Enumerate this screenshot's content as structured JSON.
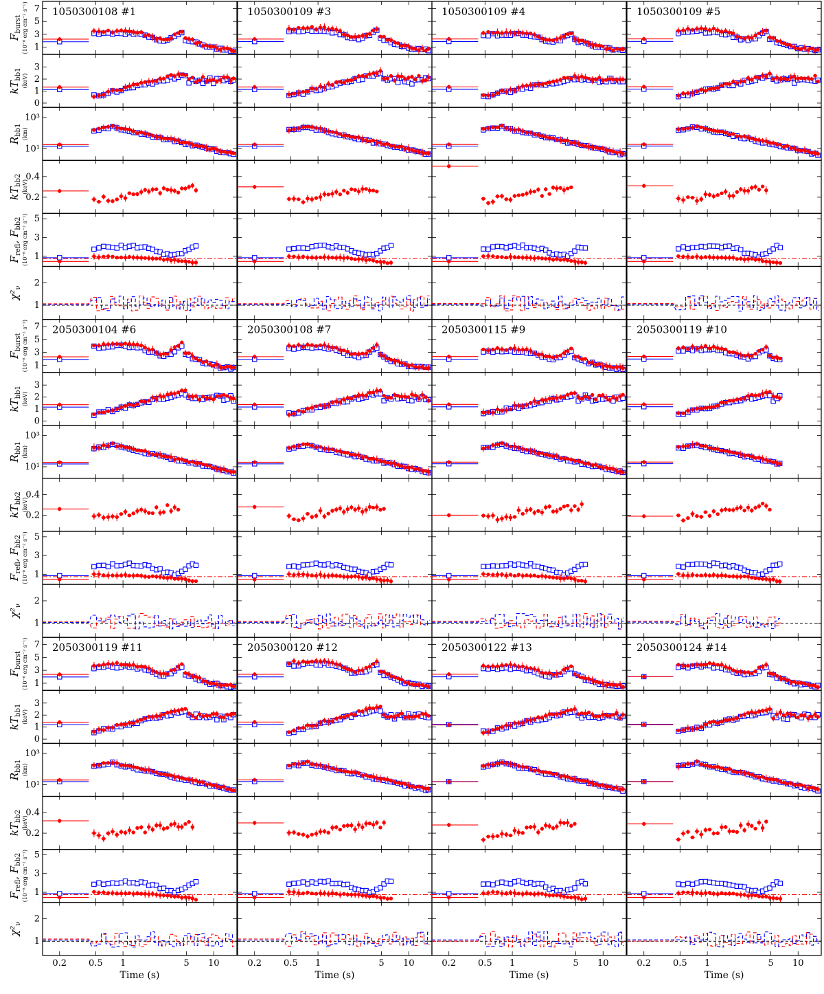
{
  "chart_data": {
    "type": "scatter",
    "description_axes": {
      "x_scale": "log",
      "xlim": [
        0.13,
        18
      ],
      "xlabel": "Time (s)",
      "x_ticks": [
        0.2,
        0.5,
        1,
        5,
        10
      ],
      "x_tick_labels": [
        "0.2",
        "0.5",
        "1",
        "5",
        "10"
      ]
    },
    "rows": [
      {
        "key": "Fburst",
        "ylabel": "F",
        "ylabel_sub": "burst",
        "unit": "(10⁻⁸ erg cm⁻² s⁻¹)",
        "scale": "linear",
        "ylim": [
          0,
          8
        ],
        "ticks": [
          1,
          3,
          5,
          7
        ],
        "tick_labels": [
          "1",
          "3",
          "5",
          "7"
        ]
      },
      {
        "key": "kTbb1",
        "ylabel": "kT",
        "ylabel_sub": "bb1",
        "unit": "(keV)",
        "scale": "linear",
        "ylim": [
          -0.3,
          4
        ],
        "ticks": [
          0,
          1,
          2,
          3
        ],
        "tick_labels": [
          "0",
          "1",
          "2",
          "3"
        ]
      },
      {
        "key": "Rbb1",
        "ylabel": "R",
        "ylabel_sub": "bb1",
        "unit": "(km)",
        "scale": "log",
        "ylim": [
          2,
          4000
        ],
        "ticks": [
          10,
          1000
        ],
        "tick_labels": [
          "10¹",
          "10³"
        ]
      },
      {
        "key": "kTbb2",
        "ylabel": "kT",
        "ylabel_sub": "bb2",
        "unit": "(keV)",
        "scale": "linear",
        "ylim": [
          0.05,
          0.55
        ],
        "ticks": [
          0.2,
          0.4
        ],
        "tick_labels": [
          "0.2",
          "0.4"
        ]
      },
      {
        "key": "Frefl",
        "ylabel": "F",
        "ylabel_sub": "refl",
        "ylabel2": ", F",
        "ylabel2_sub": "bb2",
        "unit": "(10⁻⁸ erg cm⁻² s⁻¹)",
        "scale": "linear",
        "ylim": [
          0,
          5.5
        ],
        "ticks": [
          1,
          3,
          5
        ],
        "tick_labels": [
          "1",
          "3",
          "5"
        ]
      },
      {
        "key": "chi2",
        "ylabel": "χ²",
        "ylabel_sub": "ν",
        "unit": "",
        "scale": "linear",
        "ylim": [
          0.4,
          2.7
        ],
        "ticks": [
          1,
          2
        ],
        "tick_labels": [
          "1",
          "2"
        ]
      }
    ],
    "bursts": [
      {
        "label": "1050300108 #1",
        "first_bin_end": 0.42,
        "end": 17,
        "peak": 4.0,
        "kt_peak": 2.6,
        "kt2_first": 0.26,
        "kt2_end": 6.5
      },
      {
        "label": "1050300109 #3",
        "first_bin_end": 0.42,
        "end": 17,
        "peak": 4.5,
        "kt_peak": 2.7,
        "kt2_first": 0.3,
        "kt2_end": 4.4
      },
      {
        "label": "1050300109 #4",
        "first_bin_end": 0.42,
        "end": 17,
        "peak": 3.8,
        "kt_peak": 2.3,
        "kt2_first": 0.5,
        "kt2_end": 4.6
      },
      {
        "label": "1050300109 #5",
        "first_bin_end": 0.42,
        "end": 17,
        "peak": 4.3,
        "kt_peak": 2.5,
        "kt2_first": 0.31,
        "kt2_end": 4.6
      },
      {
        "label": "2050300104 #6",
        "first_bin_end": 0.42,
        "end": 17,
        "peak": 5.0,
        "kt_peak": 2.6,
        "kt2_first": 0.26,
        "kt2_end": 4.1
      },
      {
        "label": "2050300108 #7",
        "first_bin_end": 0.42,
        "end": 17,
        "peak": 4.6,
        "kt_peak": 2.6,
        "kt2_first": 0.28,
        "kt2_end": 5.4
      },
      {
        "label": "2050300115 #9",
        "first_bin_end": 0.42,
        "end": 17,
        "peak": 4.0,
        "kt_peak": 2.4,
        "kt2_first": 0.2,
        "kt2_end": 5.8
      },
      {
        "label": "2050300119 #10",
        "first_bin_end": 0.42,
        "end": 6.5,
        "peak": 4.3,
        "kt_peak": 2.5,
        "kt2_first": 0.19,
        "kt2_end": 4.9
      },
      {
        "label": "2050300119 #11",
        "first_bin_end": 0.42,
        "end": 17,
        "peak": 4.5,
        "kt_peak": 2.6,
        "kt2_first": 0.32,
        "kt2_end": 5.8
      },
      {
        "label": "2050300120 #12",
        "first_bin_end": 0.42,
        "end": 17,
        "peak": 5.0,
        "kt_peak": 2.8,
        "kt2_first": 0.3,
        "kt2_end": 5.2
      },
      {
        "label": "2050300122 #13",
        "first_bin_end": 0.42,
        "end": 17,
        "peak": 4.2,
        "kt_peak": 2.6,
        "kt2_first": 0.28,
        "kt2_end": 5.0
      },
      {
        "label": "2050300124 #14",
        "first_bin_end": 0.42,
        "end": 17,
        "peak": 4.5,
        "kt_peak": 2.6,
        "kt2_first": 0.29,
        "kt2_end": 4.4
      }
    ],
    "colors": {
      "model_a": "#ff0000",
      "model_b": "#0000ff",
      "reference": "#000000"
    },
    "legend": "none",
    "grid": false
  }
}
